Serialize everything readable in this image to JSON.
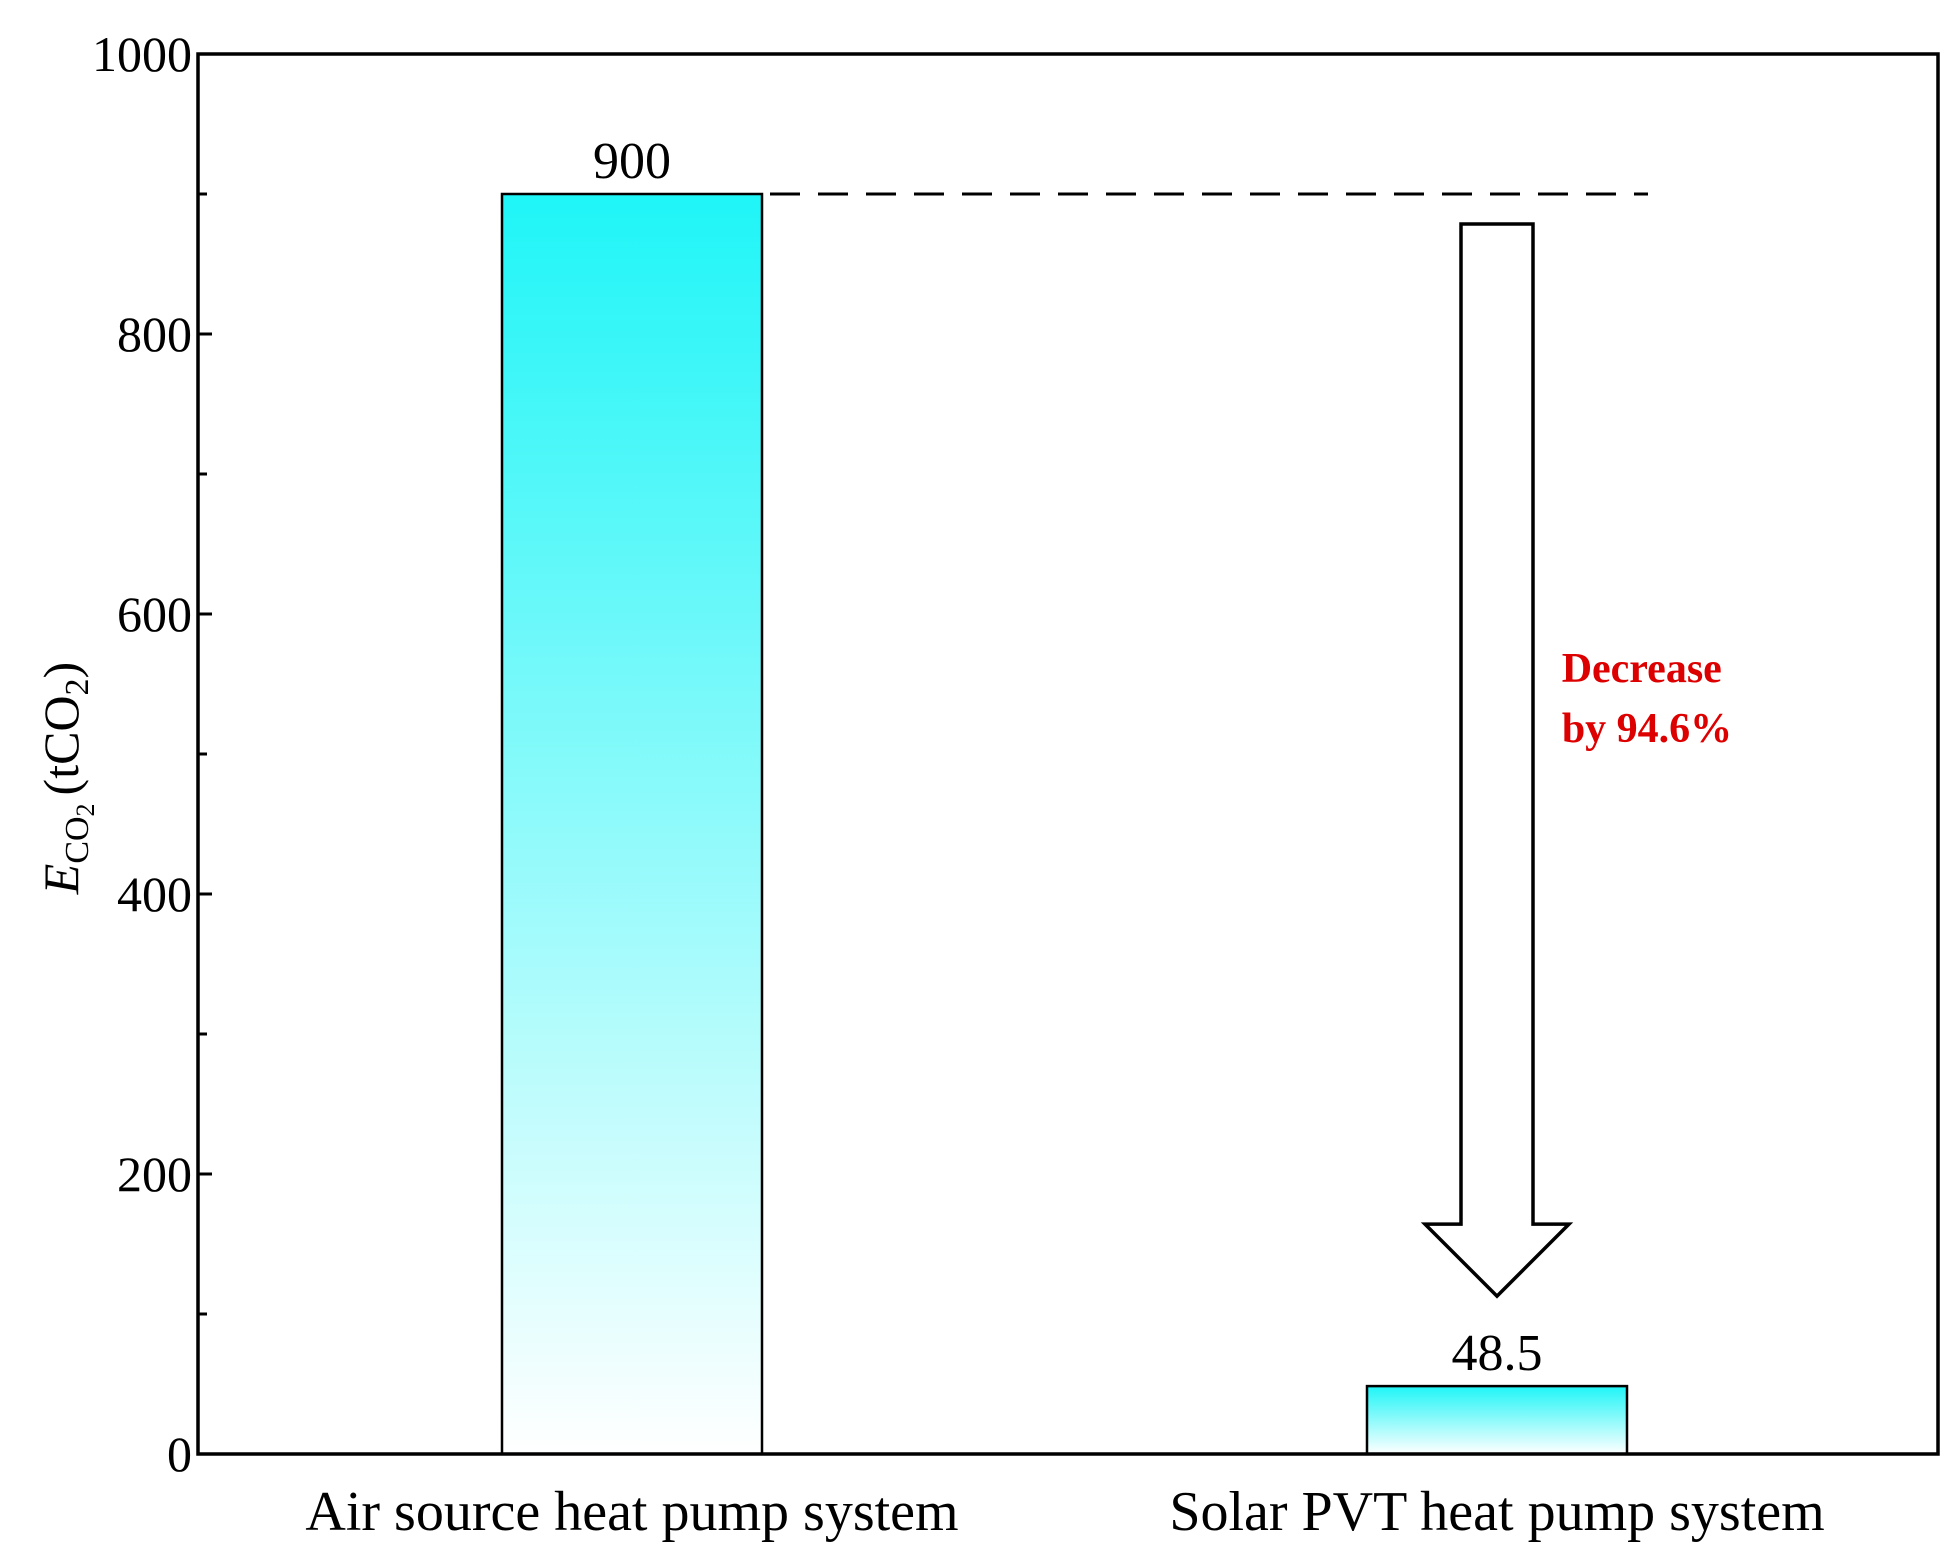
{
  "chart_data": {
    "type": "bar",
    "categories": [
      "Air source heat pump system",
      "Solar PVT heat pump system"
    ],
    "values": [
      900,
      48.5
    ],
    "data_labels": [
      "900",
      "48.5"
    ],
    "title": "",
    "xlabel": "",
    "ylabel": {
      "symbol": "E",
      "subscript": "CO",
      "subscript_digit": "2",
      "unit_prefix": "(tCO",
      "unit_digit": "2",
      "unit_suffix": ")"
    },
    "ylim": [
      0,
      1000
    ],
    "yticks": [
      "0",
      "200",
      "400",
      "600",
      "800",
      "1000"
    ],
    "grid": false,
    "legend": "none",
    "annotation": {
      "lines": [
        "Decrease",
        "by 94.6%"
      ],
      "color": "#dd0000"
    },
    "bar_gradient": {
      "top": "#1ff5f7",
      "bottom": "#ffffff"
    },
    "reference_line": "dashed at 900"
  }
}
